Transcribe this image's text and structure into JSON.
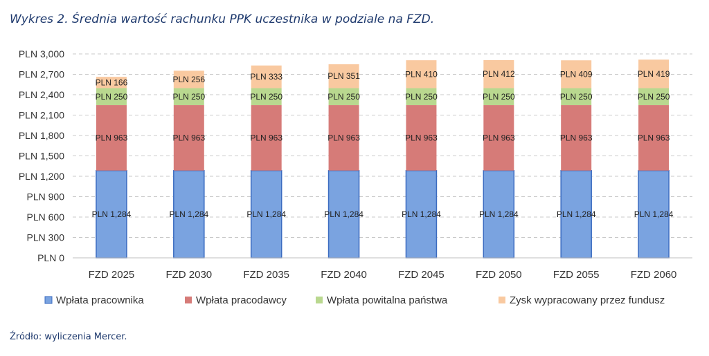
{
  "title": "Wykres 2. Średnia wartość rachunku PPK uczestnika w podziale na FZD.",
  "source": "Źródło: wyliczenia Mercer.",
  "chart_data": {
    "type": "bar",
    "stacked": true,
    "categories": [
      "FZD 2025",
      "FZD 2030",
      "FZD 2035",
      "FZD 2040",
      "FZD 2045",
      "FZD 2050",
      "FZD 2055",
      "FZD 2060"
    ],
    "series": [
      {
        "name": "Wpłata pracownika",
        "color": "#7aa3e0",
        "stroke": "#3b6bc0",
        "values": [
          1284,
          1284,
          1284,
          1284,
          1284,
          1284,
          1284,
          1284
        ],
        "labels": [
          "PLN 1,284",
          "PLN 1,284",
          "PLN 1,284",
          "PLN 1,284",
          "PLN 1,284",
          "PLN 1,284",
          "PLN 1,284",
          "PLN 1,284"
        ]
      },
      {
        "name": "Wpłata pracodawcy",
        "color": "#d67b78",
        "values": [
          963,
          963,
          963,
          963,
          963,
          963,
          963,
          963
        ],
        "labels": [
          "PLN 963",
          "PLN 963",
          "PLN 963",
          "PLN 963",
          "PLN 963",
          "PLN 963",
          "PLN 963",
          "PLN 963"
        ]
      },
      {
        "name": "Wpłata powitalna państwa",
        "color": "#b9d88f",
        "values": [
          250,
          250,
          250,
          250,
          250,
          250,
          250,
          250
        ],
        "labels": [
          "PLN 250",
          "PLN 250",
          "PLN 250",
          "PLN 250",
          "PLN 250",
          "PLN 250",
          "PLN 250",
          "PLN 250"
        ]
      },
      {
        "name": "Zysk wypracowany przez fundusz",
        "color": "#f9c9a0",
        "values": [
          166,
          256,
          333,
          351,
          410,
          412,
          409,
          419
        ],
        "labels": [
          "PLN 166",
          "PLN 256",
          "PLN 333",
          "PLN 351",
          "PLN 410",
          "PLN 412",
          "PLN 409",
          "PLN 419"
        ]
      }
    ],
    "yticks": [
      0,
      300,
      600,
      900,
      1200,
      1500,
      1800,
      2100,
      2400,
      2700,
      3000
    ],
    "ytick_labels": [
      "PLN 0",
      "PLN 300",
      "PLN 600",
      "PLN 900",
      "PLN 1,200",
      "PLN 1,500",
      "PLN 1,800",
      "PLN 2,100",
      "PLN 2,400",
      "PLN 2,700",
      "PLN 3,000"
    ],
    "ylim": [
      0,
      3000
    ],
    "grid": true,
    "legend_position": "bottom"
  }
}
